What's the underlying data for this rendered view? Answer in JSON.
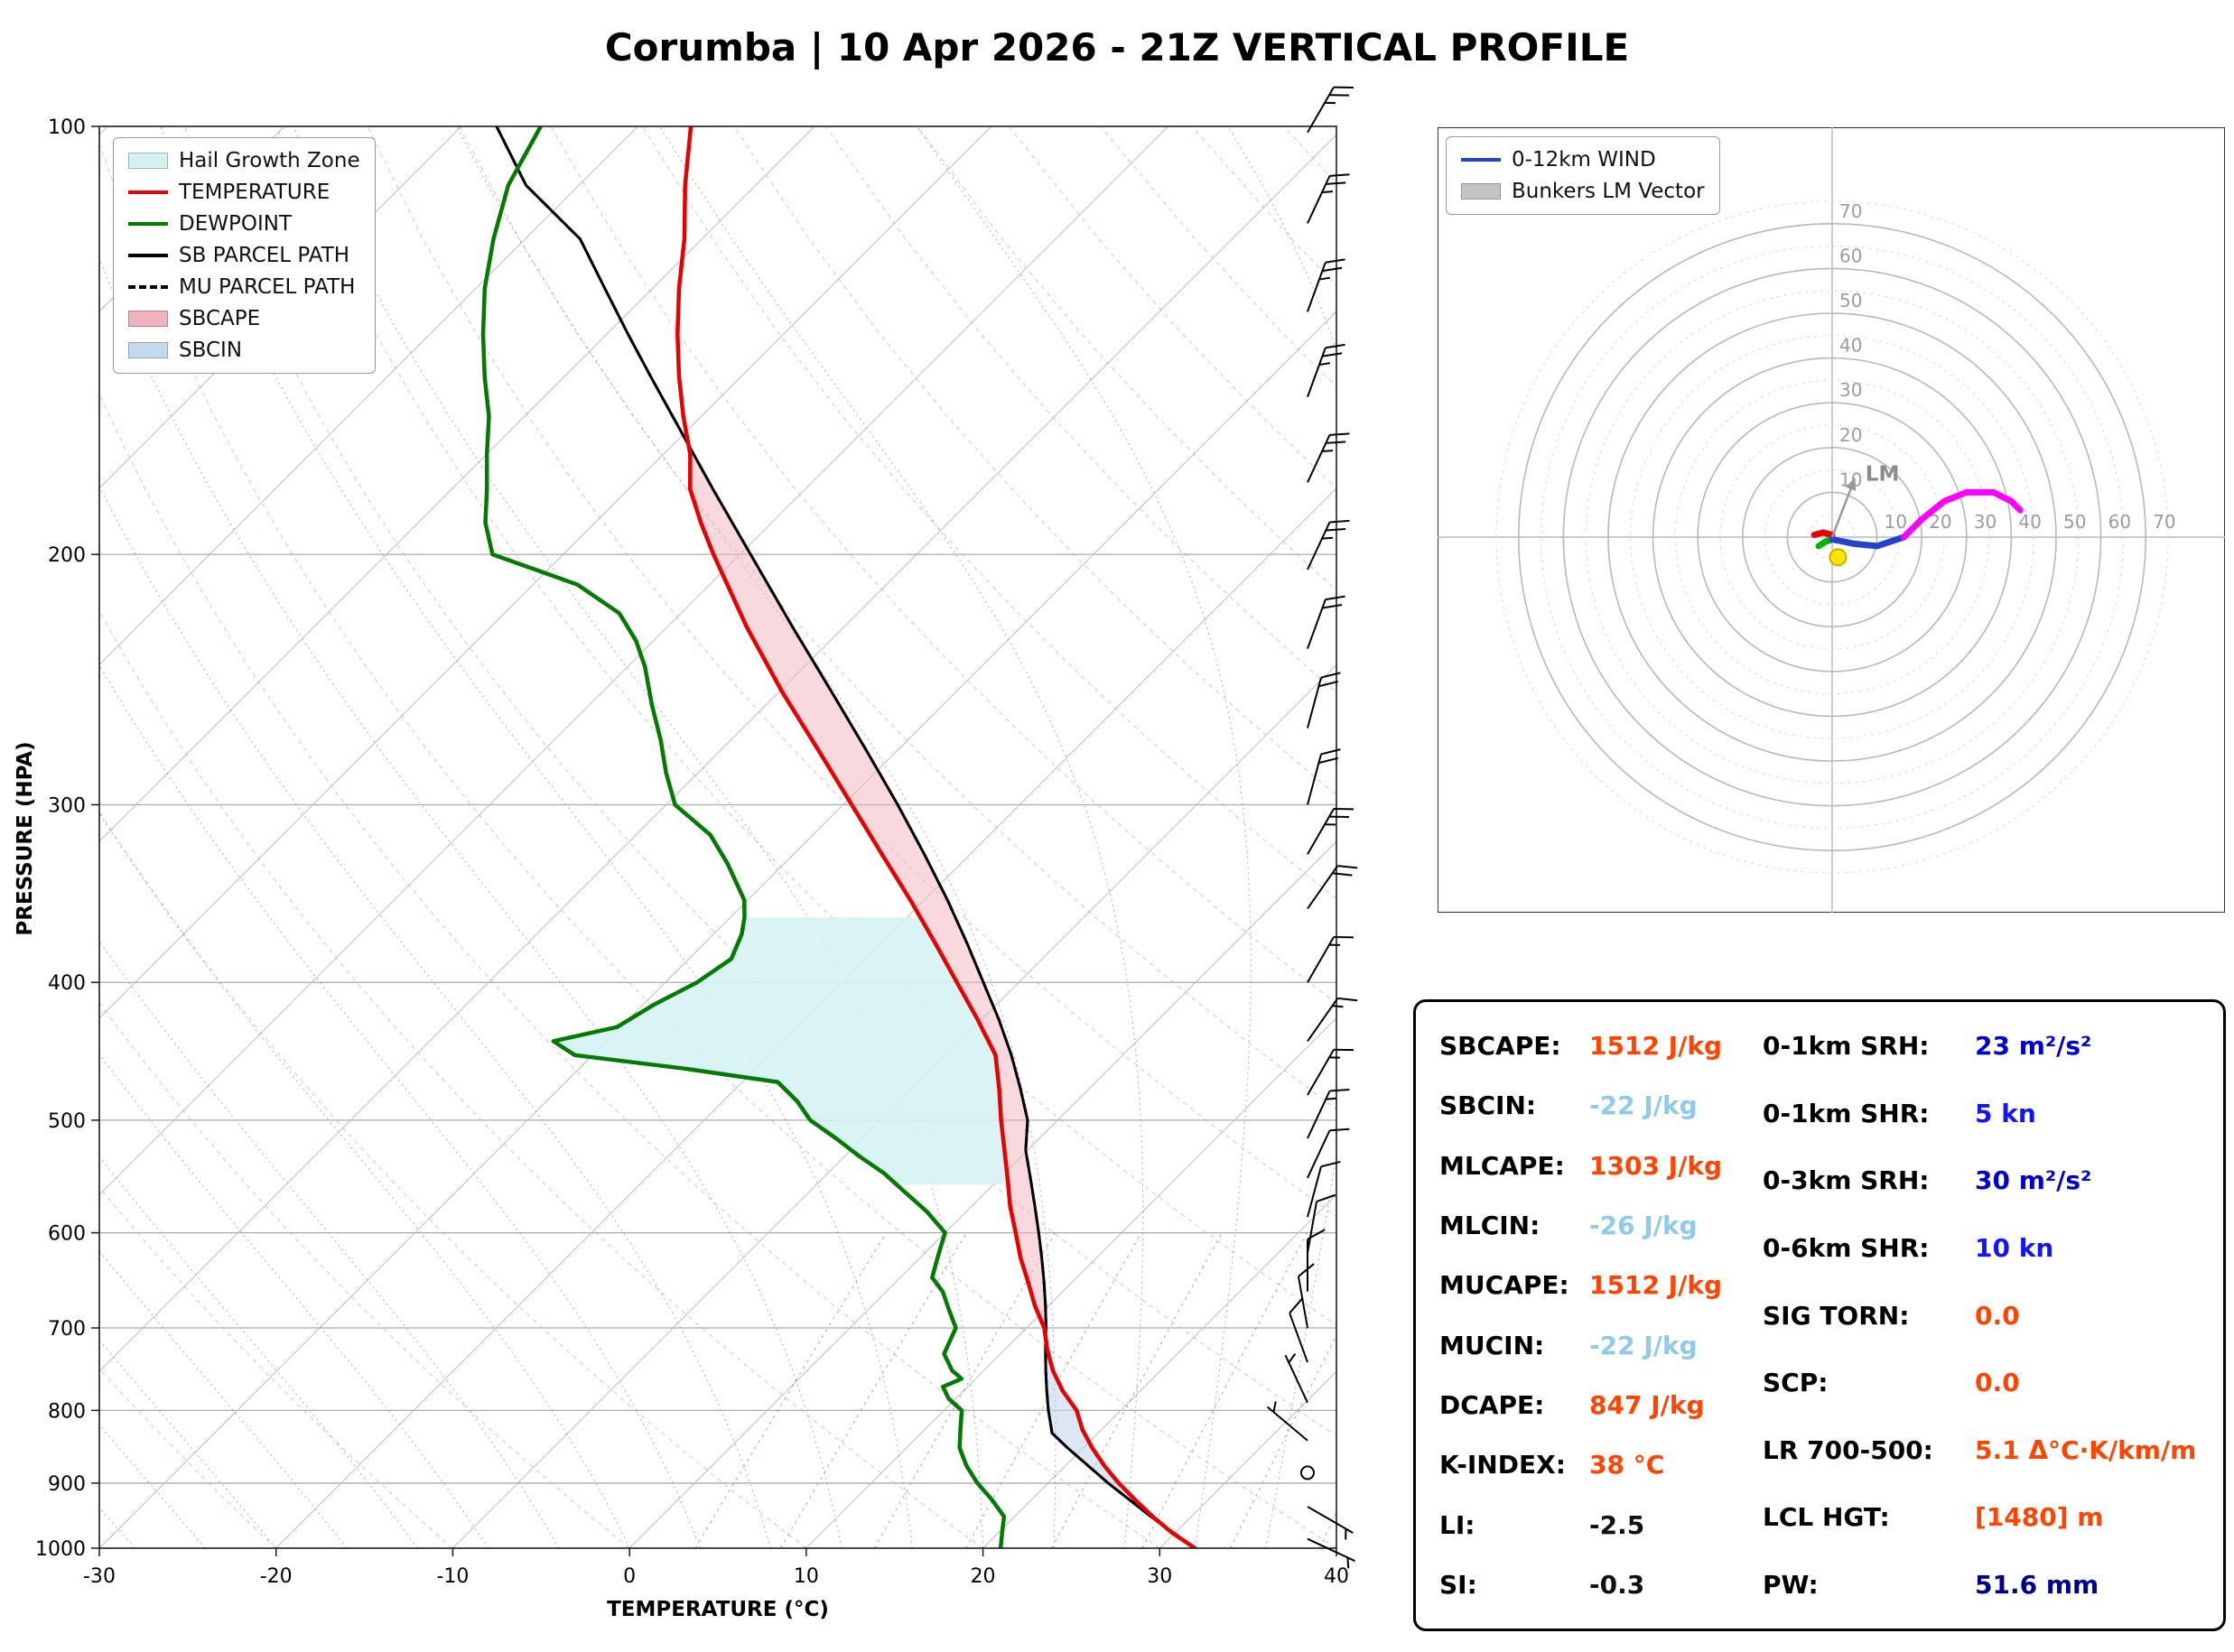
{
  "chart_data": {
    "type": "skewt",
    "title": "Corumba | 10 Apr 2026 - 21Z VERTICAL PROFILE",
    "skewt": {
      "xlabel": "TEMPERATURE (°C)",
      "ylabel": "PRESSURE (HPA)",
      "xlim": [
        -30,
        40
      ],
      "plim": [
        100,
        1000
      ],
      "x_ticks": [
        -30,
        -20,
        -10,
        0,
        10,
        20,
        30,
        40
      ],
      "p_ticks": [
        100,
        200,
        300,
        400,
        500,
        600,
        700,
        800,
        900,
        1000
      ],
      "mixing_ratios": [
        5,
        7,
        10,
        14,
        19,
        26,
        35,
        47
      ],
      "sbcape_fill": "#f0b3bd",
      "sbcin_fill": "#c3d9ed",
      "hail_zone": {
        "p_top": 360,
        "p_bottom": 555,
        "color": "#d4f2f4"
      },
      "temperature": {
        "color": "#e60000",
        "points": [
          [
            1000,
            32
          ],
          [
            975,
            29.8
          ],
          [
            950,
            27.8
          ],
          [
            925,
            25.9
          ],
          [
            900,
            24.0
          ],
          [
            875,
            22.2
          ],
          [
            850,
            20.5
          ],
          [
            825,
            18.9
          ],
          [
            800,
            17.5
          ],
          [
            775,
            15.6
          ],
          [
            750,
            13.9
          ],
          [
            725,
            12.4
          ],
          [
            700,
            11.0
          ],
          [
            675,
            9.2
          ],
          [
            650,
            7.5
          ],
          [
            625,
            5.7
          ],
          [
            600,
            4.0
          ],
          [
            575,
            2.2
          ],
          [
            550,
            0.5
          ],
          [
            525,
            -1.3
          ],
          [
            500,
            -3.2
          ],
          [
            475,
            -5.1
          ],
          [
            450,
            -7.2
          ],
          [
            425,
            -10.2
          ],
          [
            400,
            -13.5
          ],
          [
            375,
            -17.0
          ],
          [
            350,
            -20.8
          ],
          [
            325,
            -25.0
          ],
          [
            300,
            -29.5
          ],
          [
            275,
            -34.4
          ],
          [
            250,
            -39.8
          ],
          [
            225,
            -45.5
          ],
          [
            200,
            -51.5
          ],
          [
            190,
            -54.0
          ],
          [
            180,
            -56.5
          ],
          [
            170,
            -58.5
          ],
          [
            160,
            -61.0
          ],
          [
            150,
            -63.5
          ],
          [
            140,
            -66.0
          ],
          [
            130,
            -68.5
          ],
          [
            120,
            -71.0
          ],
          [
            110,
            -74.0
          ],
          [
            100,
            -77.0
          ]
        ]
      },
      "dewpoint": {
        "color": "#007a00",
        "points": [
          [
            1000,
            21
          ],
          [
            975,
            20.2
          ],
          [
            950,
            19.4
          ],
          [
            925,
            17.8
          ],
          [
            900,
            16.0
          ],
          [
            875,
            14.4
          ],
          [
            850,
            13.0
          ],
          [
            825,
            12.0
          ],
          [
            800,
            11.0
          ],
          [
            785,
            9.6
          ],
          [
            770,
            8.6
          ],
          [
            760,
            9.2
          ],
          [
            750,
            8.2
          ],
          [
            730,
            6.8
          ],
          [
            700,
            6.0
          ],
          [
            680,
            4.6
          ],
          [
            660,
            3.2
          ],
          [
            645,
            1.8
          ],
          [
            630,
            1.2
          ],
          [
            615,
            0.6
          ],
          [
            600,
            0.0
          ],
          [
            580,
            -2.2
          ],
          [
            560,
            -4.8
          ],
          [
            545,
            -6.8
          ],
          [
            530,
            -9.2
          ],
          [
            515,
            -11.5
          ],
          [
            500,
            -14.0
          ],
          [
            485,
            -15.8
          ],
          [
            470,
            -18.0
          ],
          [
            460,
            -24.0
          ],
          [
            450,
            -31.0
          ],
          [
            440,
            -33.0
          ],
          [
            430,
            -30.2
          ],
          [
            415,
            -29.4
          ],
          [
            400,
            -28.2
          ],
          [
            385,
            -27.6
          ],
          [
            370,
            -28.4
          ],
          [
            360,
            -29.2
          ],
          [
            350,
            -30.2
          ],
          [
            330,
            -33.2
          ],
          [
            315,
            -35.8
          ],
          [
            300,
            -39.5
          ],
          [
            285,
            -41.8
          ],
          [
            270,
            -44.0
          ],
          [
            255,
            -46.5
          ],
          [
            240,
            -49.0
          ],
          [
            230,
            -51.0
          ],
          [
            220,
            -53.5
          ],
          [
            210,
            -57.5
          ],
          [
            200,
            -64.0
          ],
          [
            190,
            -66.2
          ],
          [
            180,
            -68.0
          ],
          [
            170,
            -70.0
          ],
          [
            160,
            -72.0
          ],
          [
            150,
            -74.5
          ],
          [
            140,
            -77.0
          ],
          [
            130,
            -79.5
          ],
          [
            120,
            -81.8
          ],
          [
            110,
            -84.0
          ],
          [
            100,
            -85.5
          ]
        ]
      },
      "sb_parcel": {
        "color": "#000000",
        "points": [
          [
            1000,
            32
          ],
          [
            950,
            27.7
          ],
          [
            900,
            23.4
          ],
          [
            850,
            19.1
          ],
          [
            830,
            17.4
          ],
          [
            800,
            15.9
          ],
          [
            775,
            14.7
          ],
          [
            750,
            13.5
          ],
          [
            725,
            12.3
          ],
          [
            700,
            11.1
          ],
          [
            675,
            9.8
          ],
          [
            650,
            8.4
          ],
          [
            625,
            6.9
          ],
          [
            600,
            5.3
          ],
          [
            575,
            3.6
          ],
          [
            550,
            1.8
          ],
          [
            525,
            -0.1
          ],
          [
            500,
            -1.7
          ],
          [
            475,
            -3.9
          ],
          [
            450,
            -6.3
          ],
          [
            425,
            -9.0
          ],
          [
            400,
            -12.0
          ],
          [
            375,
            -15.2
          ],
          [
            350,
            -18.7
          ],
          [
            325,
            -22.6
          ],
          [
            300,
            -26.9
          ],
          [
            275,
            -31.7
          ],
          [
            250,
            -37.0
          ],
          [
            225,
            -42.9
          ],
          [
            200,
            -49.4
          ],
          [
            180,
            -55.2
          ],
          [
            160,
            -61.6
          ],
          [
            150,
            -65.1
          ],
          [
            140,
            -68.8
          ],
          [
            130,
            -72.7
          ],
          [
            120,
            -76.9
          ],
          [
            110,
            -83.0
          ],
          [
            100,
            -88.0
          ]
        ]
      },
      "mu_parcel": {
        "color": "#000000"
      },
      "wind_barbs": [
        {
          "p": 101,
          "spd": 25,
          "dir": 30
        },
        {
          "p": 117,
          "spd": 25,
          "dir": 25
        },
        {
          "p": 135,
          "spd": 25,
          "dir": 20
        },
        {
          "p": 155,
          "spd": 25,
          "dir": 20
        },
        {
          "p": 178,
          "spd": 25,
          "dir": 25
        },
        {
          "p": 205,
          "spd": 25,
          "dir": 25
        },
        {
          "p": 233,
          "spd": 20,
          "dir": 20
        },
        {
          "p": 265,
          "spd": 20,
          "dir": 15
        },
        {
          "p": 300,
          "spd": 20,
          "dir": 15
        },
        {
          "p": 325,
          "spd": 25,
          "dir": 30
        },
        {
          "p": 355,
          "spd": 20,
          "dir": 35
        },
        {
          "p": 400,
          "spd": 15,
          "dir": 30
        },
        {
          "p": 440,
          "spd": 15,
          "dir": 35
        },
        {
          "p": 480,
          "spd": 15,
          "dir": 30
        },
        {
          "p": 515,
          "spd": 15,
          "dir": 25
        },
        {
          "p": 549,
          "spd": 10,
          "dir": 25
        },
        {
          "p": 585,
          "spd": 10,
          "dir": 15
        },
        {
          "p": 620,
          "spd": 10,
          "dir": 10
        },
        {
          "p": 660,
          "spd": 10,
          "dir": 0
        },
        {
          "p": 700,
          "spd": 10,
          "dir": 350
        },
        {
          "p": 740,
          "spd": 8,
          "dir": 340
        },
        {
          "p": 790,
          "spd": 5,
          "dir": 335
        },
        {
          "p": 840,
          "spd": 5,
          "dir": 310
        },
        {
          "p": 885,
          "spd": 0,
          "dir": 0
        },
        {
          "p": 935,
          "spd": 3,
          "dir": 120
        },
        {
          "p": 985,
          "spd": 5,
          "dir": 115
        }
      ],
      "legend": [
        {
          "type": "patch",
          "color": "#d4f2f4",
          "label": "Hail Growth Zone"
        },
        {
          "type": "line",
          "color": "#e60000",
          "label": "TEMPERATURE"
        },
        {
          "type": "line",
          "color": "#007a00",
          "label": "DEWPOINT"
        },
        {
          "type": "line",
          "color": "#000000",
          "label": "SB PARCEL PATH"
        },
        {
          "type": "dashed",
          "color": "#000000",
          "label": "MU PARCEL PATH"
        },
        {
          "type": "patch",
          "color": "#f0b3bd",
          "label": "SBCAPE"
        },
        {
          "type": "patch",
          "color": "#c3d9ed",
          "label": "SBCIN"
        }
      ]
    },
    "hodograph": {
      "rings": [
        10,
        20,
        30,
        40,
        50,
        60,
        70
      ],
      "units": "kn",
      "trace": [
        {
          "name": "0-1km",
          "color": "#e60000",
          "points": [
            [
              -4,
              0.5
            ],
            [
              -2,
              1
            ],
            [
              0,
              0.5
            ]
          ]
        },
        {
          "name": "1-3km",
          "color": "#00b300",
          "points": [
            [
              -3,
              -2
            ],
            [
              -1.5,
              -1
            ],
            [
              0,
              -0.5
            ]
          ]
        },
        {
          "name": "3-6km",
          "color": "#2244cc",
          "points": [
            [
              0,
              -0.5
            ],
            [
              5,
              -1.5
            ],
            [
              10,
              -2
            ],
            [
              16,
              0
            ]
          ]
        },
        {
          "name": "6-12km",
          "color": "#ff00ff",
          "points": [
            [
              16,
              0
            ],
            [
              20,
              4
            ],
            [
              25,
              8
            ],
            [
              30,
              10
            ],
            [
              36,
              10
            ],
            [
              40,
              8
            ],
            [
              42,
              6
            ]
          ]
        }
      ],
      "lm_vector": {
        "u": 5,
        "v": 13
      },
      "lm_label": "LM",
      "storm_marker": {
        "u": 1.3,
        "v": -4.5,
        "color": "#ffe400"
      },
      "legend": [
        {
          "type": "line",
          "color": "#2244cc",
          "label": "0-12km WIND"
        },
        {
          "type": "patch",
          "color": "#c4c4c4",
          "label": "Bunkers LM Vector"
        }
      ]
    },
    "indices": {
      "left": [
        {
          "label": "SBCAPE:",
          "value": "1512 J/kg",
          "color": "#ff4500"
        },
        {
          "label": "SBCIN:",
          "value": "-22 J/kg",
          "color": "#8fcbe8"
        },
        {
          "label": "MLCAPE:",
          "value": "1303 J/kg",
          "color": "#ff4500"
        },
        {
          "label": "MLCIN:",
          "value": "-26 J/kg",
          "color": "#8fcbe8"
        },
        {
          "label": "MUCAPE:",
          "value": "1512 J/kg",
          "color": "#ff4500"
        },
        {
          "label": "MUCIN:",
          "value": "-22 J/kg",
          "color": "#8fcbe8"
        },
        {
          "label": "DCAPE:",
          "value": "847 J/kg",
          "color": "#ff4500"
        },
        {
          "label": "K-INDEX:",
          "value": "38 °C",
          "color": "#ff4500"
        },
        {
          "label": "LI:",
          "value": "-2.5",
          "color": "#111111"
        },
        {
          "label": "SI:",
          "value": "-0.3",
          "color": "#111111"
        }
      ],
      "right": [
        {
          "label": "0-1km SRH:",
          "value": "23 m²/s²",
          "color": "#0000cd"
        },
        {
          "label": "0-1km SHR:",
          "value": "5 kn",
          "color": "#1414ff"
        },
        {
          "label": "0-3km SRH:",
          "value": "30 m²/s²",
          "color": "#0000cd"
        },
        {
          "label": "0-6km SHR:",
          "value": "10 kn",
          "color": "#1414ff"
        },
        {
          "label": "SIG TORN:",
          "value": "0.0",
          "color": "#ff4500"
        },
        {
          "label": "SCP:",
          "value": "0.0",
          "color": "#ff4500"
        },
        {
          "label": "LR 700-500:",
          "value": "5.1 Δ°C·K/km/m",
          "color": "#ff4500"
        },
        {
          "label": "LCL HGT:",
          "value": "[1480] m",
          "color": "#ff4500"
        },
        {
          "label": "PW:",
          "value": "51.6 mm",
          "color": "#00008b"
        }
      ]
    }
  }
}
